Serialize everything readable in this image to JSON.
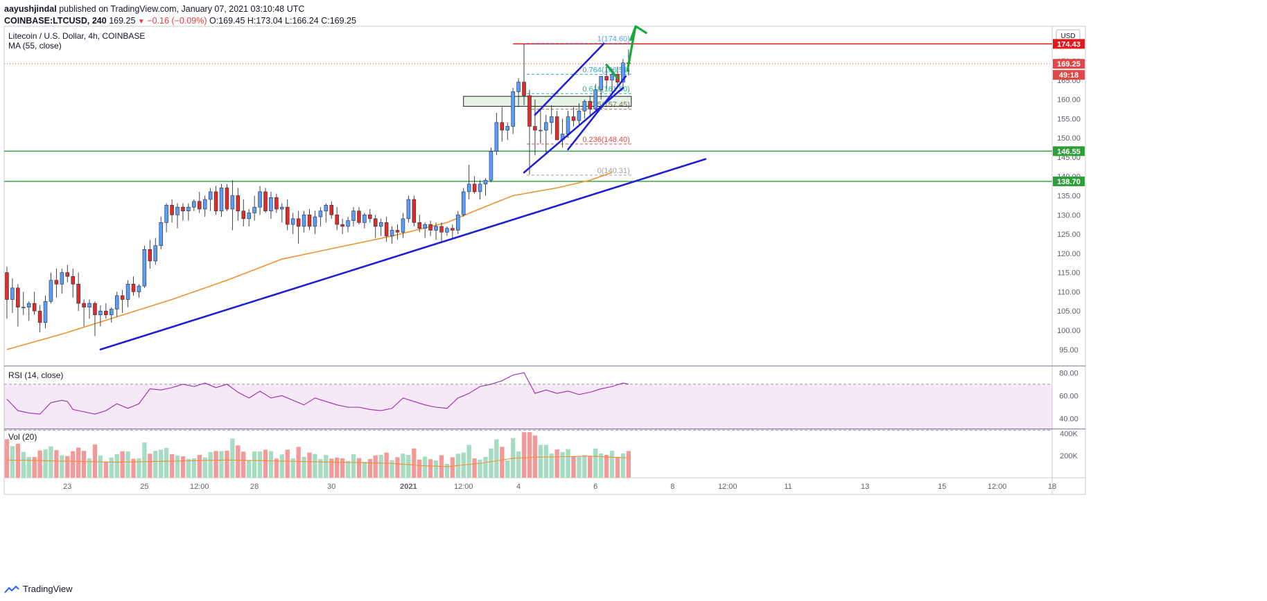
{
  "header": {
    "author": "aayushjindal",
    "published_text": "published on TradingView.com, January 07, 2021 03:10:48 UTC",
    "symbol": "COINBASE:LTCUSD, 240",
    "last": "169.25",
    "change": "−0.16 (−0.09%)",
    "ohlc": "O:169.45 H:173.04 L:166.24 C:169.25"
  },
  "footer": {
    "brand": "TradingView"
  },
  "colors": {
    "up": "#5b9cf6",
    "down": "#e02b2b",
    "ma": "#f0912f",
    "trend": "#1f1fd6",
    "support": "#2e9e3a",
    "resistance": "#e01a1a",
    "arrow": "#18a83a",
    "rsi": "#9c27b0",
    "vol_up": "#a6dcc2",
    "vol_down": "#f29a9a"
  },
  "chart_data": {
    "type": "candlestick",
    "title": "Litecoin / U.S. Dollar, 4h, COINBASE",
    "indicator_label": "MA (55, close)",
    "currency": "USD",
    "ylim": [
      91,
      179
    ],
    "y_ticks": [
      95,
      100,
      105,
      110,
      115,
      120,
      125,
      130,
      135,
      140,
      145,
      150,
      155,
      160,
      165,
      170
    ],
    "x_ticks": [
      {
        "label": "23",
        "i": 11
      },
      {
        "label": "25",
        "i": 25
      },
      {
        "label": "12:00",
        "i": 35
      },
      {
        "label": "28",
        "i": 45
      },
      {
        "label": "30",
        "i": 59
      },
      {
        "label": "2021",
        "i": 73
      },
      {
        "label": "12:00",
        "i": 83
      },
      {
        "label": "4",
        "i": 93
      },
      {
        "label": "6",
        "i": 107
      },
      {
        "label": "8",
        "i": 121
      },
      {
        "label": "12:00",
        "i": 131
      },
      {
        "label": "11",
        "i": 142
      },
      {
        "label": "13",
        "i": 156
      },
      {
        "label": "15",
        "i": 170
      },
      {
        "label": "12:00",
        "i": 180
      },
      {
        "label": "18",
        "i": 190
      }
    ],
    "x_range": [
      -0.5,
      190
    ],
    "candles": [
      [
        115.0,
        116.5,
        103.0,
        108.0
      ],
      [
        108.0,
        113.5,
        104.5,
        111.0
      ],
      [
        111.0,
        112.0,
        101.0,
        106.0
      ],
      [
        106.0,
        110.0,
        104.0,
        106.0
      ],
      [
        106.0,
        107.5,
        102.5,
        107.0
      ],
      [
        107.0,
        110.0,
        104.0,
        105.0
      ],
      [
        105.0,
        106.5,
        99.5,
        102.0
      ],
      [
        102.0,
        109.0,
        100.5,
        107.5
      ],
      [
        107.5,
        115.0,
        107.0,
        113.0
      ],
      [
        113.0,
        116.0,
        108.5,
        112.0
      ],
      [
        112.0,
        116.0,
        109.5,
        115.0
      ],
      [
        115.0,
        117.0,
        112.5,
        114.0
      ],
      [
        114.0,
        116.0,
        108.5,
        112.0
      ],
      [
        112.0,
        115.0,
        105.0,
        107.0
      ],
      [
        107.0,
        108.0,
        101.0,
        106.0
      ],
      [
        106.0,
        108.0,
        103.0,
        107.0
      ],
      [
        107.0,
        107.5,
        98.5,
        104.0
      ],
      [
        104.0,
        106.5,
        101.0,
        105.0
      ],
      [
        105.0,
        107.0,
        103.0,
        104.0
      ],
      [
        104.0,
        106.0,
        102.0,
        105.5
      ],
      [
        105.5,
        110.0,
        103.5,
        109.0
      ],
      [
        109.0,
        110.5,
        104.5,
        108.0
      ],
      [
        108.0,
        113.0,
        106.0,
        112.0
      ],
      [
        112.0,
        114.0,
        109.0,
        110.0
      ],
      [
        110.0,
        112.0,
        108.5,
        111.5
      ],
      [
        111.5,
        122.0,
        111.0,
        121.0
      ],
      [
        121.0,
        123.5,
        116.0,
        118.0
      ],
      [
        118.0,
        124.0,
        117.0,
        122.0
      ],
      [
        122.0,
        129.5,
        121.0,
        128.0
      ],
      [
        128.0,
        133.0,
        125.5,
        132.5
      ],
      [
        132.5,
        134.0,
        128.0,
        130.0
      ],
      [
        130.0,
        133.0,
        126.5,
        132.0
      ],
      [
        132.0,
        133.0,
        128.5,
        131.0
      ],
      [
        131.0,
        133.0,
        128.5,
        132.0
      ],
      [
        132.0,
        134.0,
        131.0,
        133.5
      ],
      [
        133.5,
        136.0,
        130.5,
        131.5
      ],
      [
        131.5,
        135.0,
        129.5,
        134.0
      ],
      [
        134.0,
        137.0,
        131.0,
        136.0
      ],
      [
        136.0,
        137.5,
        130.0,
        131.0
      ],
      [
        131.0,
        138.0,
        129.5,
        137.0
      ],
      [
        137.0,
        138.0,
        131.0,
        131.5
      ],
      [
        131.5,
        139.0,
        126.0,
        135.0
      ],
      [
        135.0,
        137.0,
        128.5,
        131.0
      ],
      [
        131.0,
        134.0,
        127.0,
        129.0
      ],
      [
        129.0,
        131.5,
        127.0,
        130.5
      ],
      [
        130.5,
        135.0,
        128.5,
        132.0
      ],
      [
        132.0,
        137.5,
        130.0,
        136.0
      ],
      [
        136.0,
        137.0,
        130.5,
        131.0
      ],
      [
        131.0,
        136.0,
        129.0,
        134.5
      ],
      [
        134.5,
        135.5,
        130.5,
        131.5
      ],
      [
        131.5,
        133.0,
        128.0,
        132.0
      ],
      [
        132.0,
        134.0,
        126.0,
        127.5
      ],
      [
        127.5,
        130.5,
        125.0,
        129.0
      ],
      [
        129.0,
        131.0,
        122.5,
        127.0
      ],
      [
        127.0,
        131.0,
        125.5,
        130.0
      ],
      [
        130.0,
        131.5,
        126.0,
        127.0
      ],
      [
        127.0,
        131.0,
        125.0,
        129.5
      ],
      [
        129.5,
        132.0,
        127.0,
        131.0
      ],
      [
        131.0,
        133.0,
        128.0,
        132.5
      ],
      [
        132.5,
        133.5,
        129.0,
        130.0
      ],
      [
        130.0,
        132.0,
        126.0,
        127.5
      ],
      [
        127.5,
        129.0,
        125.0,
        127.0
      ],
      [
        127.0,
        129.5,
        125.5,
        128.5
      ],
      [
        128.5,
        132.0,
        127.0,
        131.0
      ],
      [
        131.0,
        132.0,
        127.5,
        128.0
      ],
      [
        128.0,
        130.5,
        126.5,
        130.0
      ],
      [
        130.0,
        131.5,
        128.0,
        129.0
      ],
      [
        129.0,
        130.0,
        124.0,
        127.0
      ],
      [
        127.0,
        129.0,
        124.5,
        128.0
      ],
      [
        128.0,
        129.5,
        123.0,
        124.5
      ],
      [
        124.5,
        127.0,
        122.5,
        126.0
      ],
      [
        126.0,
        127.5,
        123.5,
        125.5
      ],
      [
        125.5,
        130.5,
        124.0,
        129.0
      ],
      [
        129.0,
        135.0,
        128.0,
        134.0
      ],
      [
        134.0,
        135.0,
        127.0,
        128.0
      ],
      [
        128.0,
        130.0,
        125.5,
        126.5
      ],
      [
        126.5,
        128.0,
        124.0,
        127.5
      ],
      [
        127.5,
        128.5,
        124.5,
        126.0
      ],
      [
        126.0,
        128.0,
        123.5,
        127.0
      ],
      [
        127.0,
        128.0,
        123.0,
        125.5
      ],
      [
        125.5,
        127.0,
        124.5,
        126.5
      ],
      [
        126.5,
        127.5,
        124.0,
        126.0
      ],
      [
        126.0,
        131.0,
        125.0,
        130.0
      ],
      [
        130.0,
        137.0,
        129.5,
        136.0
      ],
      [
        136.0,
        143.0,
        134.0,
        138.0
      ],
      [
        138.0,
        140.0,
        135.5,
        136.0
      ],
      [
        136.0,
        139.0,
        134.0,
        138.0
      ],
      [
        138.0,
        139.5,
        135.0,
        139.0
      ],
      [
        139.0,
        147.5,
        138.5,
        146.5
      ],
      [
        146.5,
        156.5,
        145.5,
        154.0
      ],
      [
        154.0,
        158.0,
        149.0,
        152.0
      ],
      [
        152.0,
        154.0,
        149.5,
        153.0
      ],
      [
        153.0,
        163.0,
        151.0,
        162.0
      ],
      [
        162.0,
        165.5,
        158.0,
        164.5
      ],
      [
        164.5,
        174.5,
        158.5,
        161.0
      ],
      [
        161.0,
        162.5,
        140.5,
        153.0
      ],
      [
        153.0,
        160.0,
        145.5,
        152.0
      ],
      [
        152.0,
        157.5,
        148.5,
        152.0
      ],
      [
        152.0,
        156.0,
        146.0,
        154.0
      ],
      [
        154.0,
        158.5,
        151.0,
        155.5
      ],
      [
        155.5,
        157.0,
        149.5,
        149.5
      ],
      [
        149.5,
        155.0,
        147.5,
        151.0
      ],
      [
        151.0,
        157.0,
        150.0,
        155.5
      ],
      [
        155.5,
        158.0,
        153.0,
        154.5
      ],
      [
        154.5,
        159.0,
        153.0,
        157.0
      ],
      [
        157.0,
        160.0,
        155.0,
        159.5
      ],
      [
        159.5,
        161.0,
        155.5,
        157.5
      ],
      [
        157.5,
        164.0,
        157.0,
        162.5
      ],
      [
        162.5,
        166.0,
        160.0,
        166.0
      ],
      [
        166.0,
        169.0,
        162.5,
        165.0
      ],
      [
        165.0,
        168.0,
        161.5,
        166.5
      ],
      [
        166.5,
        168.5,
        163.5,
        164.5
      ],
      [
        164.5,
        170.5,
        163.0,
        169.5
      ],
      [
        169.5,
        173.0,
        166.2,
        169.3
      ]
    ],
    "ma55": [
      [
        0,
        95.0
      ],
      [
        10,
        99.0
      ],
      [
        20,
        103.5
      ],
      [
        30,
        108.0
      ],
      [
        40,
        113.0
      ],
      [
        50,
        118.5
      ],
      [
        55,
        120.0
      ],
      [
        60,
        121.5
      ],
      [
        70,
        124.5
      ],
      [
        80,
        128.0
      ],
      [
        85,
        131.0
      ],
      [
        92,
        135.0
      ],
      [
        100,
        137.0
      ],
      [
        106,
        139.0
      ],
      [
        110,
        141.0
      ]
    ],
    "levels": {
      "resistance": 174.43,
      "resistance_label": "174.43",
      "support_1": 146.55,
      "support_1_label": "146.55",
      "support_2": 138.7,
      "support_2_label": "138.70",
      "last_price": 169.25,
      "last_label": "169.25",
      "countdown_label": "49:18"
    },
    "fibonacci": [
      {
        "level": 174.6,
        "label": "1(174.60)",
        "color": "#5b9cf6"
      },
      {
        "level": 166.51,
        "label": "0.764(166.51)",
        "color": "#2aa7d6"
      },
      {
        "level": 161.5,
        "label": "0.618(161.50)",
        "color": "#26b889"
      },
      {
        "level": 157.45,
        "label": "0.5(157.45)",
        "color": "#8d6e63"
      },
      {
        "level": 148.4,
        "label": "0.236(148.40)",
        "color": "#e04848"
      },
      {
        "level": 140.31,
        "label": "0(140.31)",
        "color": "#9e9e9e"
      }
    ],
    "trendlines": [
      {
        "from": [
          17,
          95.0
        ],
        "to": [
          127,
          144.5
        ]
      },
      {
        "from": [
          94,
          141.0
        ],
        "to": [
          112,
          163.0
        ]
      },
      {
        "from": [
          96,
          156.0
        ],
        "to": [
          108.5,
          174.5
        ]
      },
      {
        "from": [
          102,
          147.0
        ],
        "to": [
          112.5,
          166.0
        ]
      }
    ],
    "zone": {
      "from": 83,
      "to": 113.5,
      "low": 158.2,
      "high": 160.8
    },
    "rsi": {
      "label": "RSI (14, close)",
      "ylim": [
        32,
        85
      ],
      "ticks": [
        40,
        60,
        80
      ],
      "band": [
        30,
        70
      ],
      "values": [
        [
          0,
          57
        ],
        [
          2,
          47
        ],
        [
          4,
          45
        ],
        [
          6,
          44
        ],
        [
          8,
          54
        ],
        [
          10,
          56
        ],
        [
          11,
          55
        ],
        [
          12,
          48
        ],
        [
          14,
          46
        ],
        [
          16,
          44
        ],
        [
          18,
          47
        ],
        [
          20,
          53
        ],
        [
          22,
          49
        ],
        [
          24,
          53
        ],
        [
          26,
          66
        ],
        [
          28,
          65
        ],
        [
          30,
          67
        ],
        [
          32,
          70
        ],
        [
          34,
          68
        ],
        [
          36,
          71
        ],
        [
          38,
          67
        ],
        [
          40,
          70
        ],
        [
          42,
          63
        ],
        [
          44,
          58
        ],
        [
          46,
          64
        ],
        [
          48,
          58
        ],
        [
          50,
          60
        ],
        [
          52,
          56
        ],
        [
          54,
          52
        ],
        [
          56,
          58
        ],
        [
          58,
          55
        ],
        [
          60,
          52
        ],
        [
          62,
          50
        ],
        [
          64,
          50
        ],
        [
          66,
          48
        ],
        [
          68,
          47
        ],
        [
          70,
          49
        ],
        [
          72,
          58
        ],
        [
          74,
          55
        ],
        [
          76,
          52
        ],
        [
          78,
          50
        ],
        [
          80,
          49
        ],
        [
          82,
          58
        ],
        [
          84,
          62
        ],
        [
          86,
          68
        ],
        [
          88,
          70
        ],
        [
          90,
          73
        ],
        [
          92,
          78
        ],
        [
          94,
          80
        ],
        [
          96,
          62
        ],
        [
          98,
          65
        ],
        [
          100,
          62
        ],
        [
          102,
          64
        ],
        [
          104,
          61
        ],
        [
          106,
          63
        ],
        [
          108,
          66
        ],
        [
          110,
          68
        ],
        [
          112,
          71
        ],
        [
          113,
          70
        ]
      ]
    },
    "volume": {
      "label": "Vol (20)",
      "ylim": [
        0,
        430
      ],
      "ticks": [
        {
          "v": 200,
          "label": "200K"
        },
        {
          "v": 400,
          "label": "400K"
        }
      ],
      "ma": [
        [
          0,
          160
        ],
        [
          10,
          150
        ],
        [
          20,
          140
        ],
        [
          30,
          150
        ],
        [
          40,
          160
        ],
        [
          50,
          150
        ],
        [
          60,
          140
        ],
        [
          70,
          130
        ],
        [
          75,
          110
        ],
        [
          80,
          100
        ],
        [
          86,
          130
        ],
        [
          92,
          175
        ],
        [
          96,
          185
        ],
        [
          102,
          190
        ],
        [
          106,
          195
        ],
        [
          110,
          185
        ],
        [
          113,
          180
        ]
      ]
    }
  }
}
